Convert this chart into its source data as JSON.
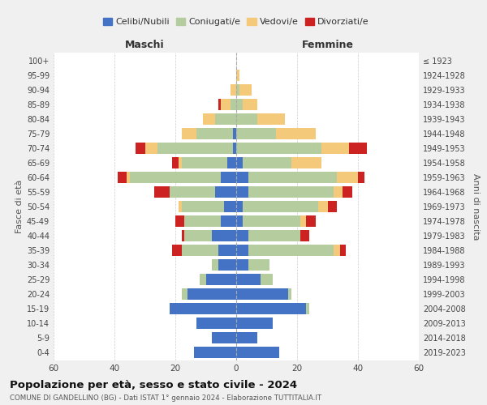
{
  "age_groups": [
    "0-4",
    "5-9",
    "10-14",
    "15-19",
    "20-24",
    "25-29",
    "30-34",
    "35-39",
    "40-44",
    "45-49",
    "50-54",
    "55-59",
    "60-64",
    "65-69",
    "70-74",
    "75-79",
    "80-84",
    "85-89",
    "90-94",
    "95-99",
    "100+"
  ],
  "birth_years": [
    "2019-2023",
    "2014-2018",
    "2009-2013",
    "2004-2008",
    "1999-2003",
    "1994-1998",
    "1989-1993",
    "1984-1988",
    "1979-1983",
    "1974-1978",
    "1969-1973",
    "1964-1968",
    "1959-1963",
    "1954-1958",
    "1949-1953",
    "1944-1948",
    "1939-1943",
    "1934-1938",
    "1929-1933",
    "1924-1928",
    "≤ 1923"
  ],
  "colors": {
    "celibi": "#4472c4",
    "coniugati": "#b5cc9e",
    "vedovi": "#f5c97a",
    "divorziati": "#cc2222"
  },
  "males": {
    "celibi": [
      14,
      8,
      13,
      22,
      16,
      10,
      6,
      6,
      8,
      5,
      4,
      7,
      5,
      3,
      1,
      1,
      0,
      0,
      0,
      0,
      0
    ],
    "coniugati": [
      0,
      0,
      0,
      0,
      2,
      2,
      2,
      12,
      9,
      12,
      14,
      15,
      30,
      15,
      25,
      12,
      7,
      2,
      0,
      0,
      0
    ],
    "vedovi": [
      0,
      0,
      0,
      0,
      0,
      0,
      0,
      0,
      0,
      0,
      1,
      0,
      1,
      1,
      4,
      5,
      4,
      3,
      2,
      0,
      0
    ],
    "divorziati": [
      0,
      0,
      0,
      0,
      0,
      0,
      0,
      3,
      1,
      3,
      0,
      5,
      3,
      2,
      3,
      0,
      0,
      1,
      0,
      0,
      0
    ]
  },
  "females": {
    "nubili": [
      14,
      7,
      12,
      23,
      17,
      8,
      4,
      4,
      4,
      2,
      2,
      4,
      4,
      2,
      0,
      0,
      0,
      0,
      0,
      0,
      0
    ],
    "coniugate": [
      0,
      0,
      0,
      1,
      1,
      4,
      7,
      28,
      17,
      19,
      25,
      28,
      29,
      16,
      28,
      13,
      7,
      2,
      1,
      0,
      0
    ],
    "vedove": [
      0,
      0,
      0,
      0,
      0,
      0,
      0,
      2,
      0,
      2,
      3,
      3,
      7,
      10,
      9,
      13,
      9,
      5,
      4,
      1,
      0
    ],
    "divorziate": [
      0,
      0,
      0,
      0,
      0,
      0,
      0,
      2,
      3,
      3,
      3,
      3,
      2,
      0,
      6,
      0,
      0,
      0,
      0,
      0,
      0
    ]
  },
  "xlim": 60,
  "title": "Popolazione per età, sesso e stato civile - 2024",
  "subtitle": "COMUNE DI GANDELLINO (BG) - Dati ISTAT 1° gennaio 2024 - Elaborazione TUTTITALIA.IT",
  "ylabel_left": "Fasce di età",
  "ylabel_right": "Anni di nascita",
  "xlabel_left": "Maschi",
  "xlabel_right": "Femmine",
  "legend_labels": [
    "Celibi/Nubili",
    "Coniugati/e",
    "Vedovi/e",
    "Divorziati/e"
  ],
  "background_color": "#f0f0f0",
  "plot_bg": "#ffffff"
}
